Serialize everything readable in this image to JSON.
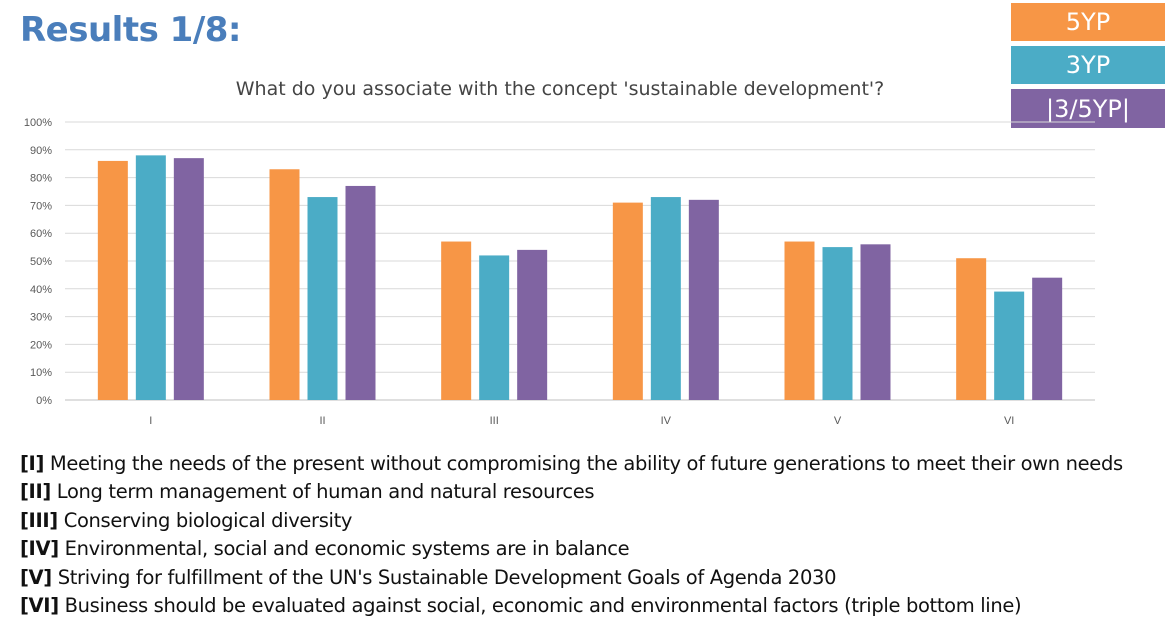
{
  "slide": {
    "title": "Results 1/8:"
  },
  "legend": [
    {
      "label": "5YP",
      "color": "#f79646"
    },
    {
      "label": "3YP",
      "color": "#4bacc6"
    },
    {
      "label": "|3/5YP|",
      "color": "#8064a2"
    }
  ],
  "chart_data": {
    "type": "bar",
    "title": "What do you associate with the concept 'sustainable development'?",
    "categories": [
      "I",
      "II",
      "III",
      "IV",
      "V",
      "VI"
    ],
    "series": [
      {
        "name": "5YP",
        "color": "#f79646",
        "values": [
          86,
          83,
          57,
          71,
          57,
          51
        ]
      },
      {
        "name": "3YP",
        "color": "#4bacc6",
        "values": [
          88,
          73,
          52,
          73,
          55,
          39
        ]
      },
      {
        "name": "|3/5YP|",
        "color": "#8064a2",
        "values": [
          87,
          77,
          54,
          72,
          56,
          44
        ]
      }
    ],
    "ylim": [
      0,
      100
    ],
    "yticks": [
      "0%",
      "10%",
      "20%",
      "30%",
      "40%",
      "50%",
      "60%",
      "70%",
      "80%",
      "90%",
      "100%"
    ],
    "grid": true,
    "legend_position": "top-right"
  },
  "notes": [
    {
      "tag": "[I]",
      "text": " Meeting the needs of the present without compromising the ability of future generations to meet their own needs"
    },
    {
      "tag": "[II]",
      "text": " Long term management of human and natural resources"
    },
    {
      "tag": "[III]",
      "text": " Conserving biological diversity"
    },
    {
      "tag": "[IV]",
      "text": " Environmental, social and economic systems are in balance"
    },
    {
      "tag": "[V]",
      "text": " Striving for fulfillment of the UN's Sustainable Development Goals of Agenda 2030"
    },
    {
      "tag": "[VI]",
      "text": " Business should be evaluated against social, economic and environmental factors (triple bottom line)"
    }
  ]
}
